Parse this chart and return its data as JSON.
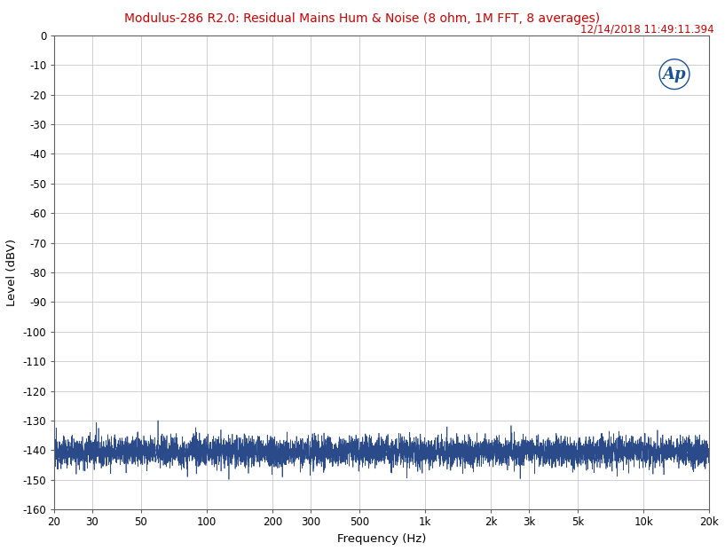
{
  "title": "Modulus-286 R2.0: Residual Mains Hum & Noise (8 ohm, 1M FFT, 8 averages)",
  "title_color": "#cc0000",
  "timestamp": "12/14/2018 11:49:11.394",
  "timestamp_color": "#cc0000",
  "xlabel": "Frequency (Hz)",
  "ylabel": "Level (dBV)",
  "xlim_log": [
    20,
    20000
  ],
  "ylim": [
    -160,
    0
  ],
  "yticks": [
    0,
    -10,
    -20,
    -30,
    -40,
    -50,
    -60,
    -70,
    -80,
    -90,
    -100,
    -110,
    -120,
    -130,
    -140,
    -150,
    -160
  ],
  "xtick_positions": [
    20,
    30,
    50,
    100,
    200,
    300,
    500,
    1000,
    2000,
    3000,
    5000,
    10000,
    20000
  ],
  "xtick_labels": [
    "20",
    "30",
    "50",
    "100",
    "200",
    "300",
    "500",
    "1k",
    "2k",
    "3k",
    "5k",
    "10k",
    "20k"
  ],
  "line_color": "#2a4a8a",
  "bg_color": "#ffffff",
  "grid_color": "#c8c8d0",
  "noise_floor": -140.5,
  "noise_std": 2.5,
  "spike_60hz_x": 60,
  "spike_60hz_y": -130,
  "spike_200hz_x": 200,
  "spike_200hz_y": -137,
  "font_size_title": 10,
  "font_size_ticks": 8.5,
  "font_size_labels": 9.5
}
